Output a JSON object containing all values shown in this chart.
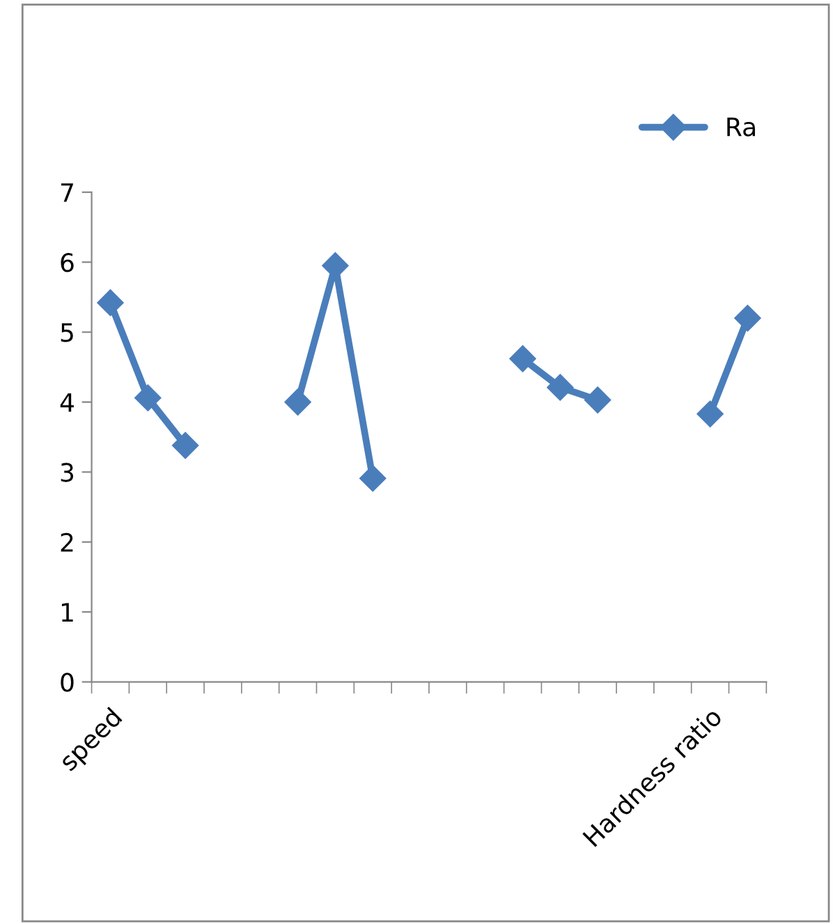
{
  "chart_data": {
    "type": "line",
    "categories": [
      "speed",
      null,
      null,
      null,
      null,
      null,
      null,
      null,
      null,
      null,
      null,
      null,
      null,
      null,
      null,
      null,
      "Hardness ratio",
      null
    ],
    "series": [
      {
        "name": "Ra",
        "color": "#4a7ebb",
        "values": [
          5.42,
          4.06,
          3.38,
          null,
          null,
          4.0,
          5.95,
          2.91,
          null,
          null,
          null,
          4.62,
          4.21,
          4.03,
          null,
          null,
          3.83,
          5.2
        ]
      }
    ],
    "ylim": [
      0,
      7
    ],
    "yticks": [
      0,
      1,
      2,
      3,
      4,
      5,
      6,
      7
    ],
    "grid": false,
    "legend": "top right",
    "marker": "diamond",
    "line_style": "solid"
  }
}
